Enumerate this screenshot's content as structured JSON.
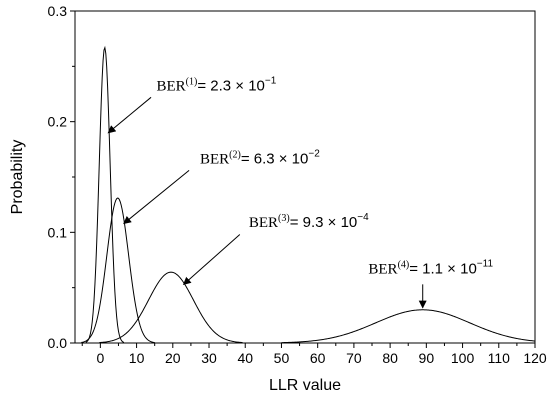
{
  "chart_data": {
    "type": "line",
    "xlabel": "LLR value",
    "ylabel": "Probability",
    "xlim": [
      -7,
      120
    ],
    "ylim": [
      0,
      0.3
    ],
    "x_ticks": [
      0,
      10,
      20,
      30,
      40,
      50,
      60,
      70,
      80,
      90,
      100,
      110,
      120
    ],
    "y_ticks": [
      0,
      0.1,
      0.2,
      0.3
    ],
    "y_tick_labels": [
      "0.0",
      "0.1",
      "0.2",
      "0.3"
    ],
    "grid": false,
    "series": [
      {
        "mean": 1.2,
        "sigma": 1.5,
        "peak": 0.267
      },
      {
        "mean": 4.8,
        "sigma": 3.0,
        "peak": 0.131
      },
      {
        "mean": 19.5,
        "sigma": 6.2,
        "peak": 0.064
      },
      {
        "mean": 89.0,
        "sigma": 13.0,
        "peak": 0.03
      }
    ],
    "annotations": [
      {
        "prefix": "BER",
        "sup": "(1)",
        "text": "= 2.3 × 10",
        "exp": "−1",
        "text_at": [
          15.5,
          0.228
        ],
        "arrow_from": [
          14.0,
          0.222
        ],
        "arrow_to": [
          2.2,
          0.19
        ]
      },
      {
        "prefix": "BER",
        "sup": "(2)",
        "text": "= 6.3 × 10",
        "exp": "−2",
        "text_at": [
          27.5,
          0.162
        ],
        "arrow_from": [
          24.5,
          0.156
        ],
        "arrow_to": [
          6.5,
          0.108
        ]
      },
      {
        "prefix": "BER",
        "sup": "(3)",
        "text": "= 9.3 × 10",
        "exp": "−4",
        "text_at": [
          41.0,
          0.105
        ],
        "arrow_from": [
          38.5,
          0.098
        ],
        "arrow_to": [
          23.0,
          0.053
        ]
      },
      {
        "prefix": "BER",
        "sup": "(4)",
        "text": "= 1.1 × 10",
        "exp": "−11",
        "text_at": [
          74.0,
          0.063
        ],
        "arrow_from": [
          89.0,
          0.053
        ],
        "arrow_to": [
          89.0,
          0.032
        ]
      }
    ]
  }
}
